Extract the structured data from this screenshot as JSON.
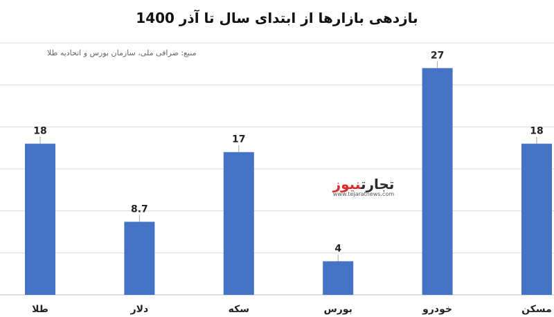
{
  "title": "بازدهی بازارها از ابتدای سال تا آذر 1400",
  "source_note": "منبع: صرافی ملی، سازمان بورس و اتحادیه طلا",
  "watermark": {
    "name_part1": "تجارت",
    "name_part2": "نیوز",
    "url": "www.tejaratnews.com"
  },
  "colors": {
    "bar": "#4472c4",
    "accent": "#e02a2a"
  },
  "chart_data": {
    "type": "bar",
    "title": "بازدهی بازارها از ابتدای سال تا آذر 1400",
    "categories": [
      "طلا",
      "دلار",
      "سکه",
      "بورس",
      "خودرو",
      "مسکن"
    ],
    "values": [
      18,
      8.7,
      17,
      4,
      27,
      18
    ],
    "value_labels": [
      "18",
      "8.7",
      "17",
      "4",
      "27",
      "18"
    ],
    "ylim": [
      0,
      30
    ],
    "grid": true,
    "legend": "none"
  }
}
